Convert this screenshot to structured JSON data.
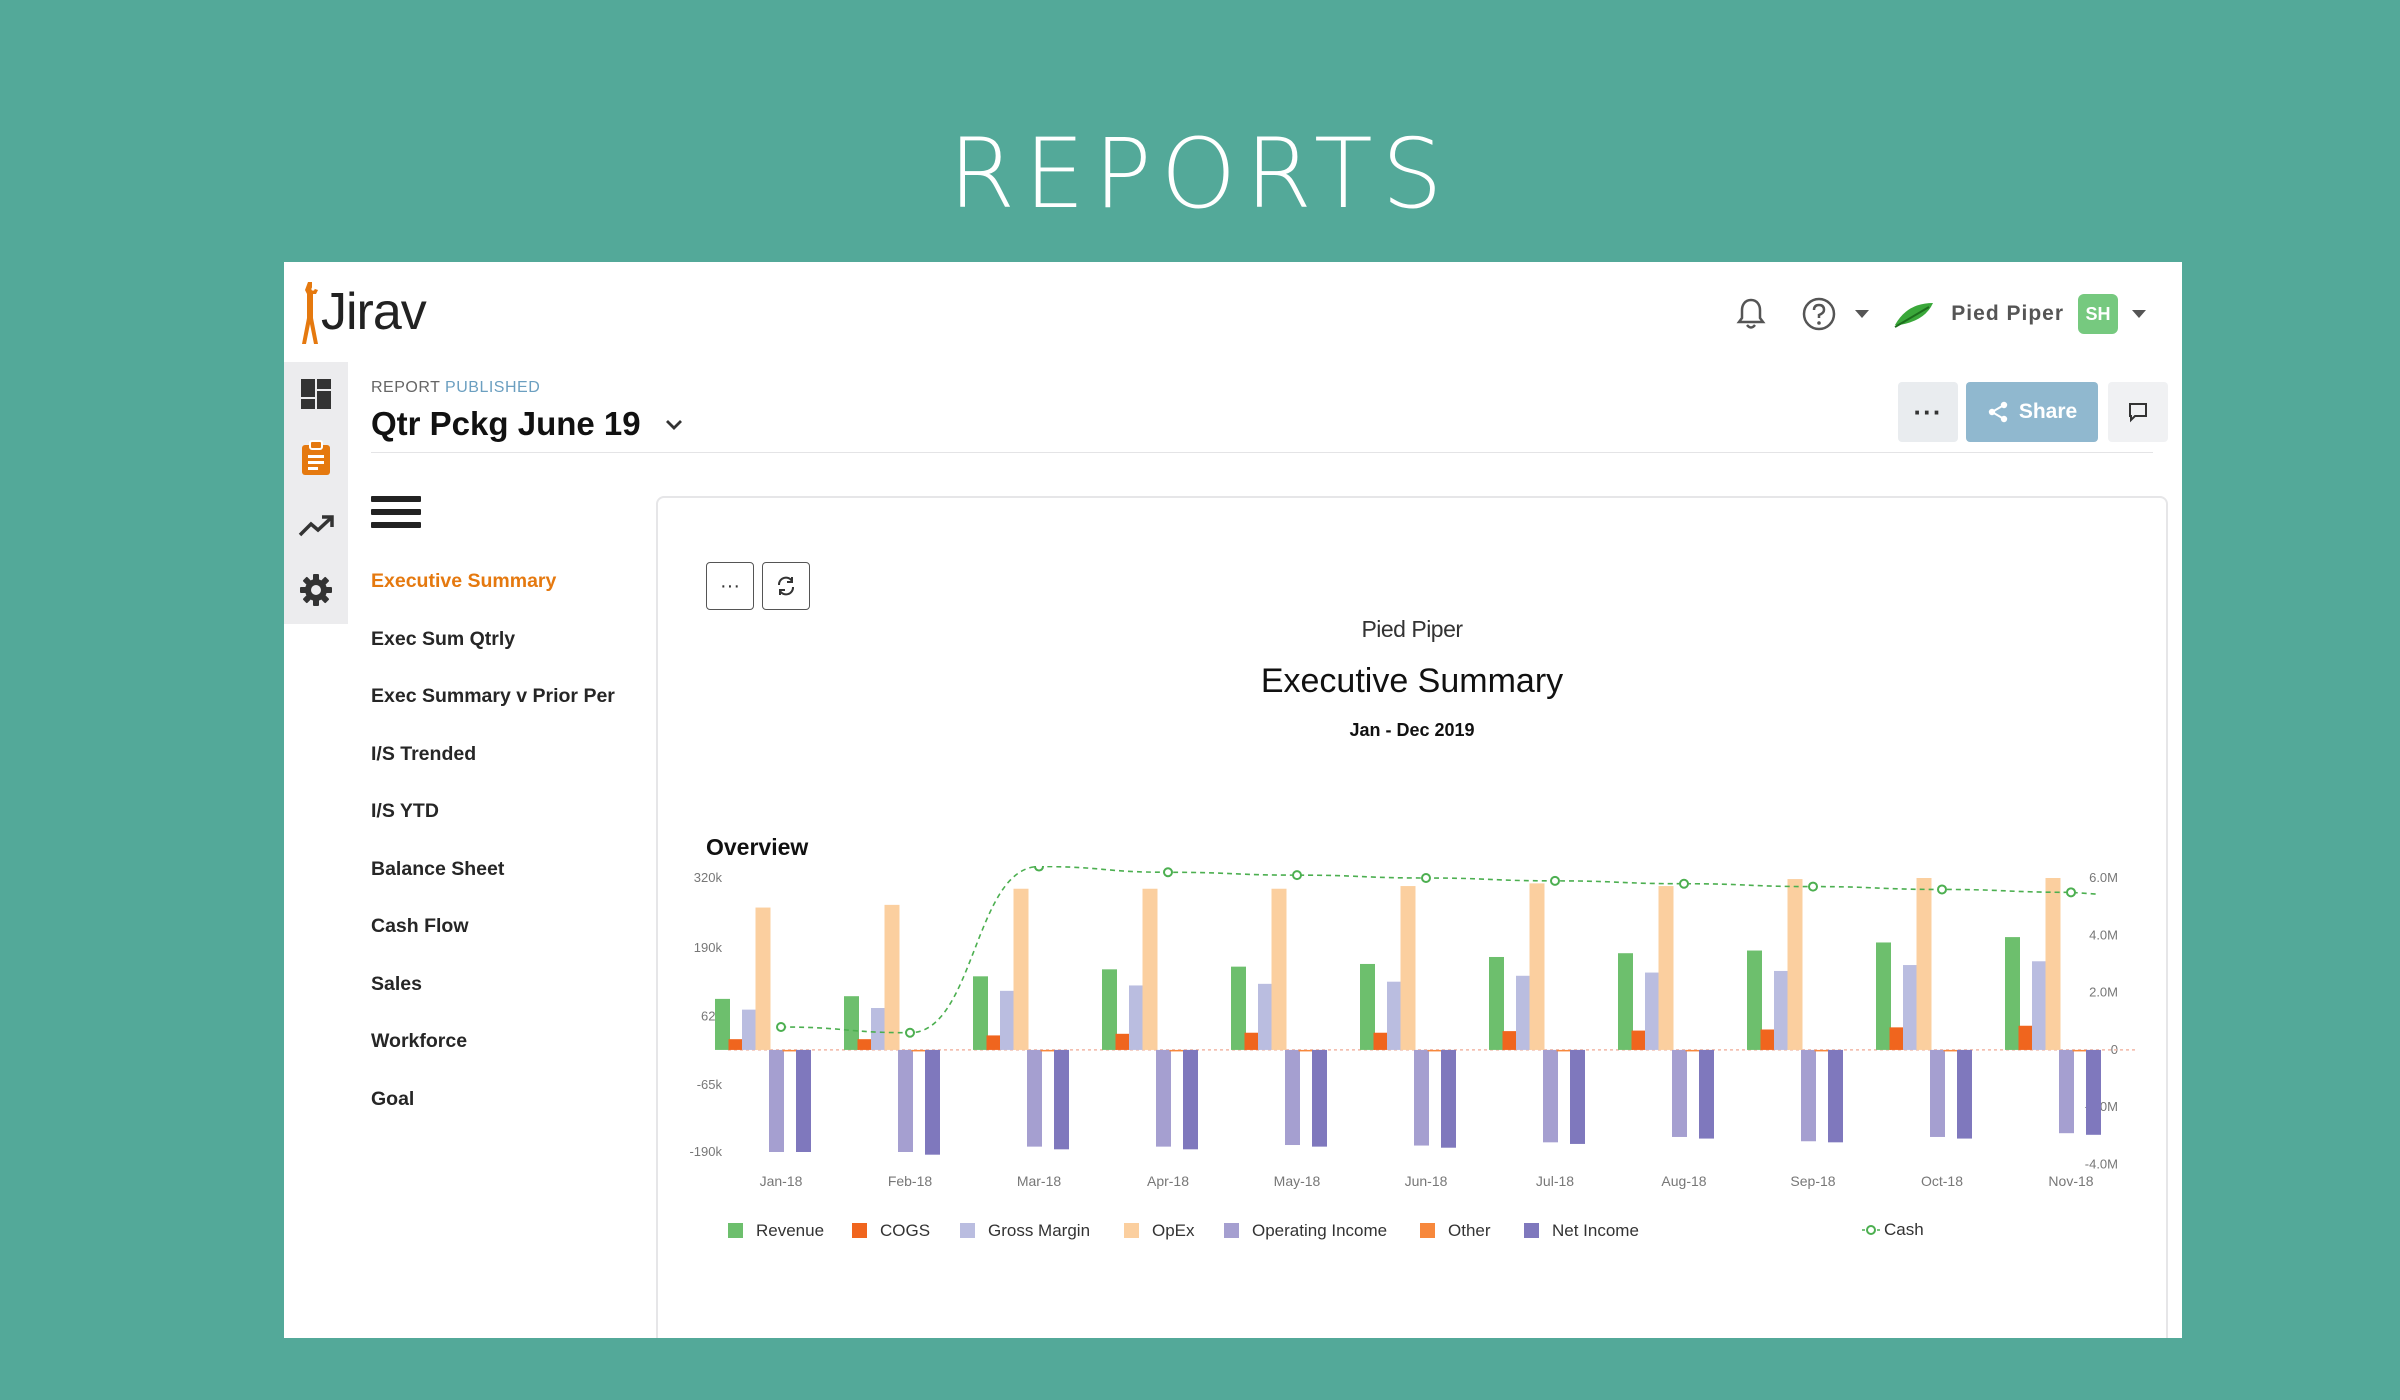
{
  "hero_title": "REPORTS",
  "app": {
    "logo_text": "Jirav",
    "org_name": "Pied Piper",
    "user_initials": "SH",
    "colors": {
      "accent": "#e5790f",
      "share": "#90b8cf",
      "avatar": "#76c97f",
      "background": "#53a999"
    }
  },
  "icons": {
    "notifications": "bell-icon",
    "help": "help-circle-icon",
    "rail": [
      "dashboard-icon",
      "reports-clipboard-icon",
      "trend-icon",
      "settings-gear-icon"
    ]
  },
  "report": {
    "status_label": "REPORT",
    "status_value": "PUBLISHED",
    "title": "Qtr Pckg June 19",
    "share_label": "Share",
    "more_label": "···"
  },
  "nav": {
    "items": [
      "Executive Summary",
      "Exec Sum Qtrly",
      "Exec Summary v Prior Per",
      "I/S Trended",
      "I/S YTD",
      "Balance Sheet",
      "Cash Flow",
      "Sales",
      "Workforce",
      "Goal"
    ],
    "active_index": 0
  },
  "page": {
    "more_label": "···",
    "company": "Pied Piper",
    "name": "Executive Summary",
    "period": "Jan - Dec 2019",
    "section": "Overview"
  },
  "chart_data": {
    "type": "bar",
    "categories": [
      "Jan-18",
      "Feb-18",
      "Mar-18",
      "Apr-18",
      "May-18",
      "Jun-18",
      "Jul-18",
      "Aug-18",
      "Sep-18",
      "Oct-18",
      "Nov-18"
    ],
    "y_ticks": [
      "320k",
      "190k",
      "62k",
      "-65k",
      "-190k"
    ],
    "y_range": [
      -190000,
      320000
    ],
    "y2_ticks": [
      "6.0M",
      "4.0M",
      "2.0M",
      "0",
      "-2.0M",
      "-4.0M"
    ],
    "y2_range": [
      -4000000,
      6000000
    ],
    "series": [
      {
        "name": "Revenue",
        "color": "#6dbf6d",
        "values": [
          95000,
          100000,
          137000,
          150000,
          155000,
          160000,
          173000,
          180000,
          185000,
          200000,
          210000
        ]
      },
      {
        "name": "COGS",
        "color": "#f0651e",
        "values": [
          20000,
          20000,
          27000,
          30000,
          32000,
          32000,
          35000,
          36000,
          38000,
          42000,
          45000
        ]
      },
      {
        "name": "Gross Margin",
        "color": "#babde0",
        "values": [
          75000,
          78000,
          110000,
          120000,
          123000,
          127000,
          138000,
          144000,
          147000,
          158000,
          165000
        ]
      },
      {
        "name": "OpEx",
        "color": "#fbcf9f",
        "values": [
          265000,
          270000,
          300000,
          300000,
          300000,
          305000,
          310000,
          305000,
          318000,
          320000,
          320000
        ]
      },
      {
        "name": "Operating Income",
        "color": "#a59fd0",
        "values": [
          -190000,
          -190000,
          -180000,
          -180000,
          -177000,
          -178000,
          -172000,
          -162000,
          -170000,
          -162000,
          -155000
        ]
      },
      {
        "name": "Other",
        "color": "#f7883c",
        "values": [
          -1000,
          -1000,
          -1000,
          -1000,
          -1000,
          -1000,
          -1000,
          -1000,
          -1000,
          -1000,
          -1000
        ]
      },
      {
        "name": "Net Income",
        "color": "#7f78bd",
        "values": [
          -190000,
          -195000,
          -185000,
          -185000,
          -180000,
          -182000,
          -175000,
          -165000,
          -172000,
          -165000,
          -158000
        ]
      }
    ],
    "line": {
      "name": "Cash",
      "color": "#4caf50",
      "axis": "y2",
      "values": [
        800000,
        600000,
        6400000,
        6200000,
        6100000,
        6000000,
        5900000,
        5800000,
        5700000,
        5600000,
        5500000
      ]
    },
    "legend_position": "bottom",
    "grid": false
  }
}
